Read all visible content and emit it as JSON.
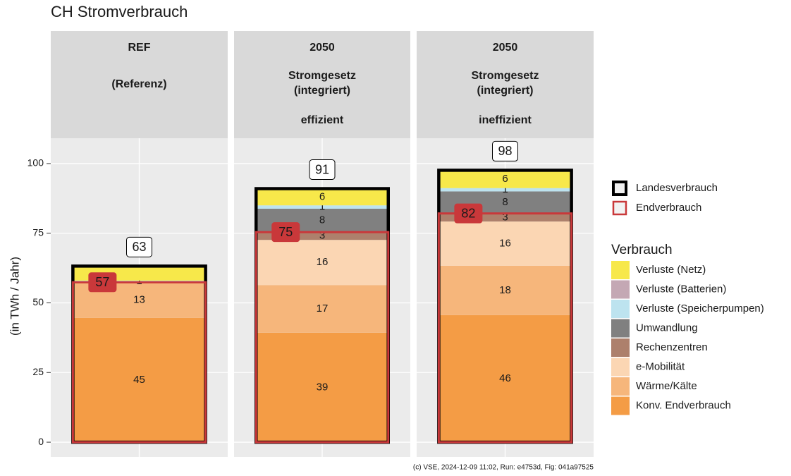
{
  "chart_data": {
    "type": "bar",
    "title": "CH Stromverbrauch",
    "y_label": "(in TWh / Jahr)",
    "facets": [
      [
        "REF",
        "(Referenz)"
      ],
      [
        "2050",
        "Stromgesetz",
        "(integriert)",
        "effizient"
      ],
      [
        "2050",
        "Stromgesetz",
        "(integriert)",
        "ineffizient"
      ]
    ],
    "ylim": [
      -5.3,
      109.1
    ],
    "yticks": [
      0,
      25,
      50,
      75,
      100
    ],
    "grid": true,
    "legend_title": "Verbrauch",
    "legend_position": "right",
    "series": [
      {
        "name": "Verluste (Netz)",
        "color": "#f7e84a",
        "values": [
          5.2,
          6.0,
          6.4
        ],
        "value_labels": [
          null,
          "6",
          "6"
        ]
      },
      {
        "name": "Verluste (Batterien)",
        "color": "#c4a8b4",
        "values": [
          null,
          null,
          null
        ],
        "value_labels": [
          null,
          null,
          null
        ]
      },
      {
        "name": "Verluste (Speicherpumpen)",
        "color": "#bde3ef",
        "values": [
          0.6,
          1.2,
          1.2
        ],
        "value_labels": [
          "1",
          "1",
          "1"
        ]
      },
      {
        "name": "Umwandlung",
        "color": "#808080",
        "values": [
          null,
          8.4,
          7.9
        ],
        "value_labels": [
          null,
          "8",
          "8"
        ]
      },
      {
        "name": "Rechenzentren",
        "color": "#ad806c",
        "values": [
          null,
          2.8,
          2.9
        ],
        "value_labels": [
          null,
          "3",
          "3"
        ]
      },
      {
        "name": "e-Mobilität",
        "color": "#fbd6b3",
        "values": [
          null,
          16.2,
          15.9
        ],
        "value_labels": [
          null,
          "16",
          "16"
        ]
      },
      {
        "name": "Wärme/Kälte",
        "color": "#f6b67b",
        "values": [
          12.8,
          17.1,
          17.7
        ],
        "value_labels": [
          "13",
          "17",
          "18"
        ]
      },
      {
        "name": "Konv. Endverbrauch",
        "color": "#f49c45",
        "values": [
          44.6,
          39.3,
          45.6
        ],
        "value_labels": [
          "45",
          "39",
          "46"
        ]
      }
    ],
    "outlines": [
      {
        "name": "Landesverbrauch",
        "color": "#000000",
        "values": [
          63.2,
          91.0,
          97.6
        ],
        "value_labels": [
          "63",
          "91",
          "98"
        ]
      },
      {
        "name": "Endverbrauch",
        "color": "#c9383a",
        "values": [
          57.4,
          75.4,
          82.1
        ],
        "value_labels": [
          "57",
          "75",
          "82"
        ]
      }
    ],
    "caption": "(c) VSE, 2024-12-09 11:02, Run: e4753d, Fig: 041a97525"
  }
}
